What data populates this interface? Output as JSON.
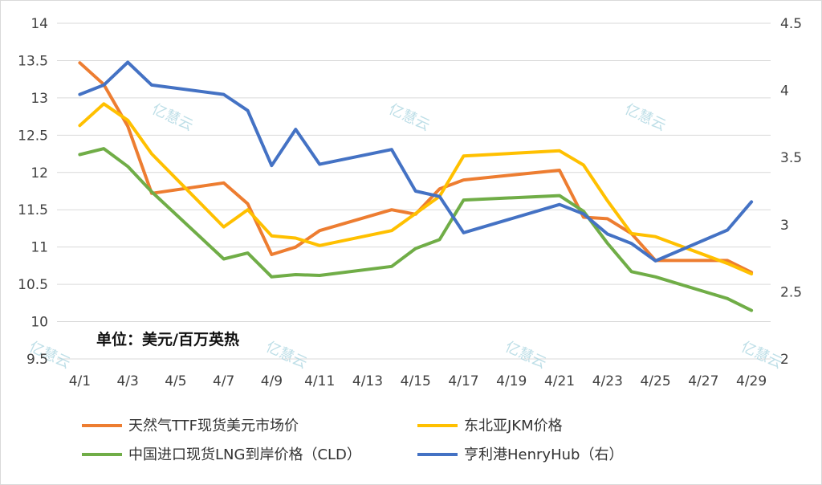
{
  "chart_data": {
    "type": "line",
    "title": "",
    "unit_note": "单位：美元/百万英热",
    "watermark": "亿慧云",
    "x": [
      1,
      2,
      3,
      4,
      7,
      8,
      9,
      10,
      11,
      14,
      15,
      16,
      17,
      18,
      21,
      22,
      23,
      24,
      25,
      28,
      29
    ],
    "xlabels": [
      "4/1",
      "4/3",
      "4/5",
      "4/7",
      "4/9",
      "4/11",
      "4/13",
      "4/15",
      "4/17",
      "4/19",
      "4/21",
      "4/23",
      "4/25",
      "4/27",
      "4/29"
    ],
    "xlabel_days": [
      1,
      3,
      5,
      7,
      9,
      11,
      13,
      15,
      17,
      19,
      21,
      23,
      25,
      27,
      29
    ],
    "xlim": [
      0.05,
      29.8
    ],
    "ylim_left": [
      9.5,
      14
    ],
    "yticks_left": [
      "9.5",
      "10",
      "10.5",
      "11",
      "11.5",
      "12",
      "12.5",
      "13",
      "13.5",
      "14"
    ],
    "ylim_right": [
      2,
      4.5
    ],
    "yticks_right": [
      "2",
      "2.5",
      "3",
      "3.5",
      "4",
      "4.5"
    ],
    "grid": true,
    "legend_position": "bottom",
    "series": [
      {
        "name": "天然气TTF现货美元市场价",
        "axis": "left",
        "color": "#ED7D31",
        "points": [
          [
            1,
            13.47
          ],
          [
            2,
            13.18
          ],
          [
            3,
            12.62
          ],
          [
            4,
            11.72
          ],
          [
            7,
            11.86
          ],
          [
            8,
            11.58
          ],
          [
            9,
            10.9
          ],
          [
            10,
            11.0
          ],
          [
            11,
            11.22
          ],
          [
            14,
            11.5
          ],
          [
            15,
            11.44
          ],
          [
            16,
            11.78
          ],
          [
            17,
            11.9
          ],
          [
            21,
            12.03
          ],
          [
            22,
            11.4
          ],
          [
            23,
            11.38
          ],
          [
            24,
            11.18
          ],
          [
            25,
            10.82
          ],
          [
            28,
            10.82
          ],
          [
            29,
            10.66
          ]
        ]
      },
      {
        "name": "东北亚JKM价格",
        "axis": "left",
        "color": "#FFC000",
        "points": [
          [
            1,
            12.63
          ],
          [
            2,
            12.92
          ],
          [
            3,
            12.7
          ],
          [
            4,
            12.25
          ],
          [
            7,
            11.27
          ],
          [
            8,
            11.5
          ],
          [
            9,
            11.15
          ],
          [
            10,
            11.12
          ],
          [
            11,
            11.02
          ],
          [
            14,
            11.22
          ],
          [
            15,
            11.45
          ],
          [
            16,
            11.68
          ],
          [
            17,
            12.22
          ],
          [
            21,
            12.29
          ],
          [
            22,
            12.1
          ],
          [
            23,
            11.62
          ],
          [
            24,
            11.18
          ],
          [
            25,
            11.14
          ],
          [
            28,
            10.78
          ],
          [
            29,
            10.64
          ]
        ]
      },
      {
        "name": "中国进口现货LNG到岸价格（CLD）",
        "axis": "left",
        "color": "#70AD47",
        "points": [
          [
            1,
            12.24
          ],
          [
            2,
            12.32
          ],
          [
            3,
            12.08
          ],
          [
            4,
            11.74
          ],
          [
            7,
            10.84
          ],
          [
            8,
            10.92
          ],
          [
            9,
            10.6
          ],
          [
            10,
            10.63
          ],
          [
            11,
            10.62
          ],
          [
            14,
            10.74
          ],
          [
            15,
            10.98
          ],
          [
            16,
            11.1
          ],
          [
            17,
            11.63
          ],
          [
            21,
            11.69
          ],
          [
            22,
            11.48
          ],
          [
            23,
            11.05
          ],
          [
            24,
            10.67
          ],
          [
            25,
            10.6
          ],
          [
            28,
            10.31
          ],
          [
            29,
            10.15
          ]
        ]
      },
      {
        "name": "亨利港HenryHub（右）",
        "axis": "right",
        "color": "#4472C4",
        "points": [
          [
            1,
            3.97
          ],
          [
            2,
            4.04
          ],
          [
            3,
            4.21
          ],
          [
            4,
            4.04
          ],
          [
            7,
            3.97
          ],
          [
            8,
            3.85
          ],
          [
            9,
            3.44
          ],
          [
            10,
            3.71
          ],
          [
            11,
            3.45
          ],
          [
            14,
            3.56
          ],
          [
            15,
            3.25
          ],
          [
            16,
            3.21
          ],
          [
            17,
            2.94
          ],
          [
            21,
            3.15
          ],
          [
            22,
            3.08
          ],
          [
            23,
            2.93
          ],
          [
            24,
            2.86
          ],
          [
            25,
            2.73
          ],
          [
            28,
            2.96
          ],
          [
            29,
            3.17
          ]
        ]
      }
    ]
  }
}
